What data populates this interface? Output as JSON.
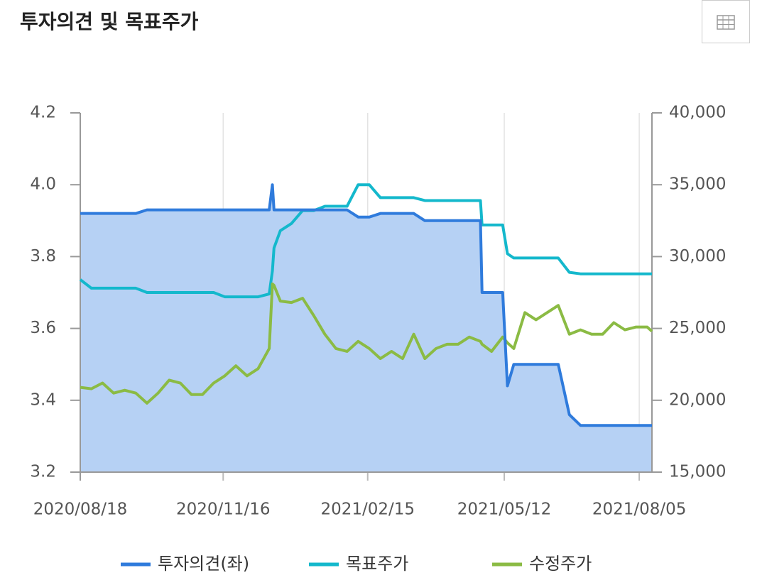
{
  "chart_data": {
    "type": "line",
    "title": "투자의견 및 목표주가",
    "x": [
      "2020/08/18",
      "2020/08/25",
      "2020/09/01",
      "2020/09/08",
      "2020/09/15",
      "2020/09/22",
      "2020/09/29",
      "2020/10/06",
      "2020/10/13",
      "2020/10/20",
      "2020/10/27",
      "2020/11/03",
      "2020/11/10",
      "2020/11/17",
      "2020/11/24",
      "2020/12/01",
      "2020/12/08",
      "2020/12/15",
      "2020/12/17",
      "2020/12/18",
      "2020/12/22",
      "2020/12/29",
      "2021/01/05",
      "2021/01/12",
      "2021/01/19",
      "2021/01/26",
      "2021/02/02",
      "2021/02/09",
      "2021/02/16",
      "2021/02/23",
      "2021/03/02",
      "2021/03/09",
      "2021/03/16",
      "2021/03/23",
      "2021/03/30",
      "2021/04/06",
      "2021/04/13",
      "2021/04/20",
      "2021/04/27",
      "2021/04/28",
      "2021/05/04",
      "2021/05/11",
      "2021/05/14",
      "2021/05/18",
      "2021/05/25",
      "2021/06/01",
      "2021/06/08",
      "2021/06/15",
      "2021/06/22",
      "2021/06/29",
      "2021/07/06",
      "2021/07/13",
      "2021/07/20",
      "2021/07/27",
      "2021/08/03",
      "2021/08/10",
      "2021/08/13"
    ],
    "series": [
      {
        "name": "투자의견(좌)",
        "color": "#2f7bdc",
        "area_color": "#b6d1f4",
        "values": [
          3.92,
          3.92,
          3.92,
          3.92,
          3.92,
          3.92,
          3.93,
          3.93,
          3.93,
          3.93,
          3.93,
          3.93,
          3.93,
          3.93,
          3.93,
          3.93,
          3.93,
          3.93,
          4.0,
          3.93,
          3.93,
          3.93,
          3.93,
          3.93,
          3.93,
          3.93,
          3.93,
          3.91,
          3.91,
          3.92,
          3.92,
          3.92,
          3.92,
          3.9,
          3.9,
          3.9,
          3.9,
          3.9,
          3.9,
          3.7,
          3.7,
          3.7,
          3.44,
          3.5,
          3.5,
          3.5,
          3.5,
          3.5,
          3.36,
          3.33,
          3.33,
          3.33,
          3.33,
          3.33,
          3.33,
          3.33,
          3.33
        ]
      },
      {
        "name": "목표주가",
        "color": "#14b8cc",
        "axis": "y2",
        "values": [
          28400,
          27800,
          27800,
          27800,
          27800,
          27800,
          27500,
          27500,
          27500,
          27500,
          27500,
          27500,
          27500,
          27200,
          27200,
          27200,
          27200,
          27400,
          29000,
          30600,
          31800,
          32300,
          33200,
          33200,
          33500,
          33500,
          33500,
          35000,
          35000,
          34100,
          34100,
          34100,
          34100,
          33900,
          33900,
          33900,
          33900,
          33900,
          33900,
          32200,
          32200,
          32200,
          30200,
          29900,
          29900,
          29900,
          29900,
          29900,
          28900,
          28800,
          28800,
          28800,
          28800,
          28800,
          28800,
          28800,
          28800
        ]
      },
      {
        "name": "수정주가",
        "color": "#8bbb44",
        "axis": "y2",
        "values": [
          20900,
          20800,
          21200,
          20500,
          20700,
          20500,
          19800,
          20500,
          21400,
          21200,
          20400,
          20400,
          21200,
          21700,
          22400,
          21700,
          22200,
          23600,
          28100,
          28000,
          26900,
          26800,
          27100,
          25900,
          24600,
          23600,
          23400,
          24100,
          23600,
          22900,
          23400,
          22900,
          24600,
          22900,
          23600,
          23900,
          23900,
          24400,
          24100,
          23900,
          23400,
          24400,
          24000,
          23600,
          26100,
          25600,
          26100,
          26600,
          24600,
          24900,
          24600,
          24600,
          25400,
          24900,
          25100,
          25100,
          24800
        ]
      }
    ],
    "xlim": [
      "2020/08/18",
      "2021/08/13"
    ],
    "xticks": [
      "2020/08/18",
      "2020/11/16",
      "2021/02/15",
      "2021/05/12",
      "2021/08/05"
    ],
    "ylim": [
      3.2,
      4.2
    ],
    "yticks": [
      3.2,
      3.4,
      3.6,
      3.8,
      {
        "value": 4,
        "label": "4.0"
      },
      4.2
    ],
    "y2lim": [
      15000,
      40000
    ],
    "y2ticks": [
      {
        "value": 15000,
        "label": "15,000"
      },
      {
        "value": 20000,
        "label": "20,000"
      },
      {
        "value": 25000,
        "label": "25,000"
      },
      {
        "value": 30000,
        "label": "30,000"
      },
      {
        "value": 35000,
        "label": "35,000"
      },
      {
        "value": 40000,
        "label": "40,000"
      }
    ],
    "grid": true
  }
}
